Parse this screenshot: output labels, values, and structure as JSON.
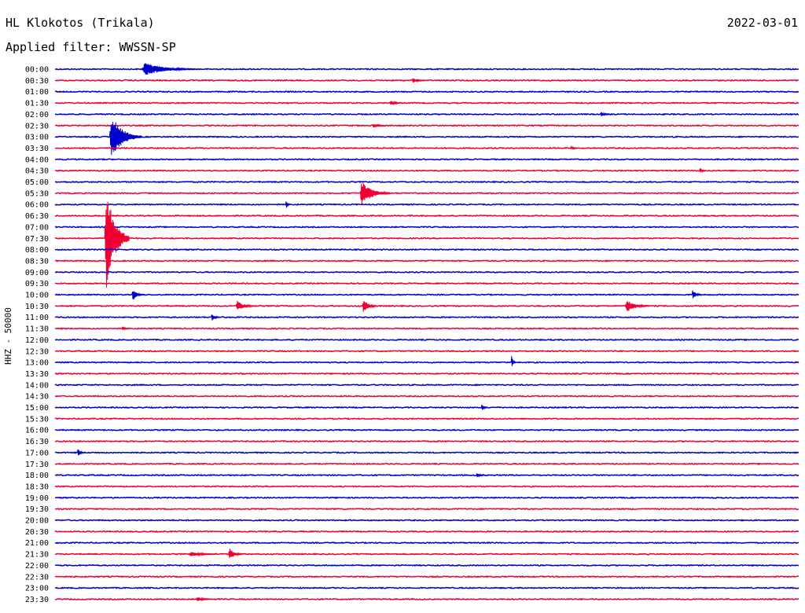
{
  "header": {
    "station": "HL Klokotos (Trikala)",
    "date": "2022-03-01",
    "filter": "Applied filter: WWSSN-SP",
    "channel_label": "HHZ - 50000"
  },
  "colors": {
    "blue": "#0000cc",
    "red": "#ee0033"
  },
  "chart_data": {
    "type": "line",
    "title": "HL Klokotos (Trikala)",
    "subtitle": "Applied filter: WWSSN-SP",
    "date": "2022-03-01",
    "ylabel": "HHZ - 50000",
    "xlabel": "",
    "grid": false,
    "row_times": [
      "00:00",
      "00:30",
      "01:00",
      "01:30",
      "02:00",
      "02:30",
      "03:00",
      "03:30",
      "04:00",
      "04:30",
      "05:00",
      "05:30",
      "06:00",
      "06:30",
      "07:00",
      "07:30",
      "08:00",
      "08:30",
      "09:00",
      "09:30",
      "10:00",
      "10:30",
      "11:00",
      "11:30",
      "12:00",
      "12:30",
      "13:00",
      "13:30",
      "14:00",
      "14:30",
      "15:00",
      "15:30",
      "16:00",
      "16:30",
      "17:00",
      "17:30",
      "18:00",
      "18:30",
      "19:00",
      "19:30",
      "20:00",
      "20:30",
      "21:00",
      "21:30",
      "22:00",
      "22:30",
      "23:00",
      "23:30"
    ],
    "row_colors": [
      "blue",
      "red"
    ],
    "x_minutes_per_row": 30,
    "events": [
      {
        "row": "00:00",
        "minute": 3.5,
        "amp": 9,
        "dur": 2.2
      },
      {
        "row": "00:30",
        "minute": 14.4,
        "amp": 4,
        "dur": 0.5
      },
      {
        "row": "01:30",
        "minute": 13.5,
        "amp": 3,
        "dur": 0.6
      },
      {
        "row": "02:00",
        "minute": 22.0,
        "amp": 3,
        "dur": 0.5
      },
      {
        "row": "02:30",
        "minute": 12.8,
        "amp": 3,
        "dur": 0.6
      },
      {
        "row": "03:00",
        "minute": 2.2,
        "amp": 30,
        "dur": 1.3
      },
      {
        "row": "03:30",
        "minute": 20.8,
        "amp": 3,
        "dur": 0.3
      },
      {
        "row": "04:30",
        "minute": 26.0,
        "amp": 4,
        "dur": 0.3
      },
      {
        "row": "05:30",
        "minute": 12.3,
        "amp": 16,
        "dur": 1.2
      },
      {
        "row": "06:00",
        "minute": 9.3,
        "amp": 7,
        "dur": 0.2
      },
      {
        "row": "07:30",
        "minute": 2.0,
        "amp": 68,
        "dur": 1.0
      },
      {
        "row": "10:00",
        "minute": 3.1,
        "amp": 8,
        "dur": 0.5
      },
      {
        "row": "10:00",
        "minute": 25.7,
        "amp": 7,
        "dur": 0.4
      },
      {
        "row": "10:30",
        "minute": 7.3,
        "amp": 7,
        "dur": 0.8
      },
      {
        "row": "10:30",
        "minute": 12.4,
        "amp": 9,
        "dur": 0.6
      },
      {
        "row": "10:30",
        "minute": 23.0,
        "amp": 8,
        "dur": 1.0
      },
      {
        "row": "11:00",
        "minute": 6.3,
        "amp": 5,
        "dur": 0.4
      },
      {
        "row": "11:30",
        "minute": 2.7,
        "amp": 3,
        "dur": 0.3
      },
      {
        "row": "13:00",
        "minute": 18.4,
        "amp": 10,
        "dur": 0.2
      },
      {
        "row": "15:00",
        "minute": 17.2,
        "amp": 4,
        "dur": 0.3
      },
      {
        "row": "17:00",
        "minute": 0.9,
        "amp": 6,
        "dur": 0.3
      },
      {
        "row": "18:00",
        "minute": 17.0,
        "amp": 3,
        "dur": 0.4
      },
      {
        "row": "21:30",
        "minute": 5.4,
        "amp": 3,
        "dur": 1.4
      },
      {
        "row": "21:30",
        "minute": 7.0,
        "amp": 8,
        "dur": 0.6
      },
      {
        "row": "23:30",
        "minute": 5.7,
        "amp": 3,
        "dur": 0.8
      }
    ]
  }
}
